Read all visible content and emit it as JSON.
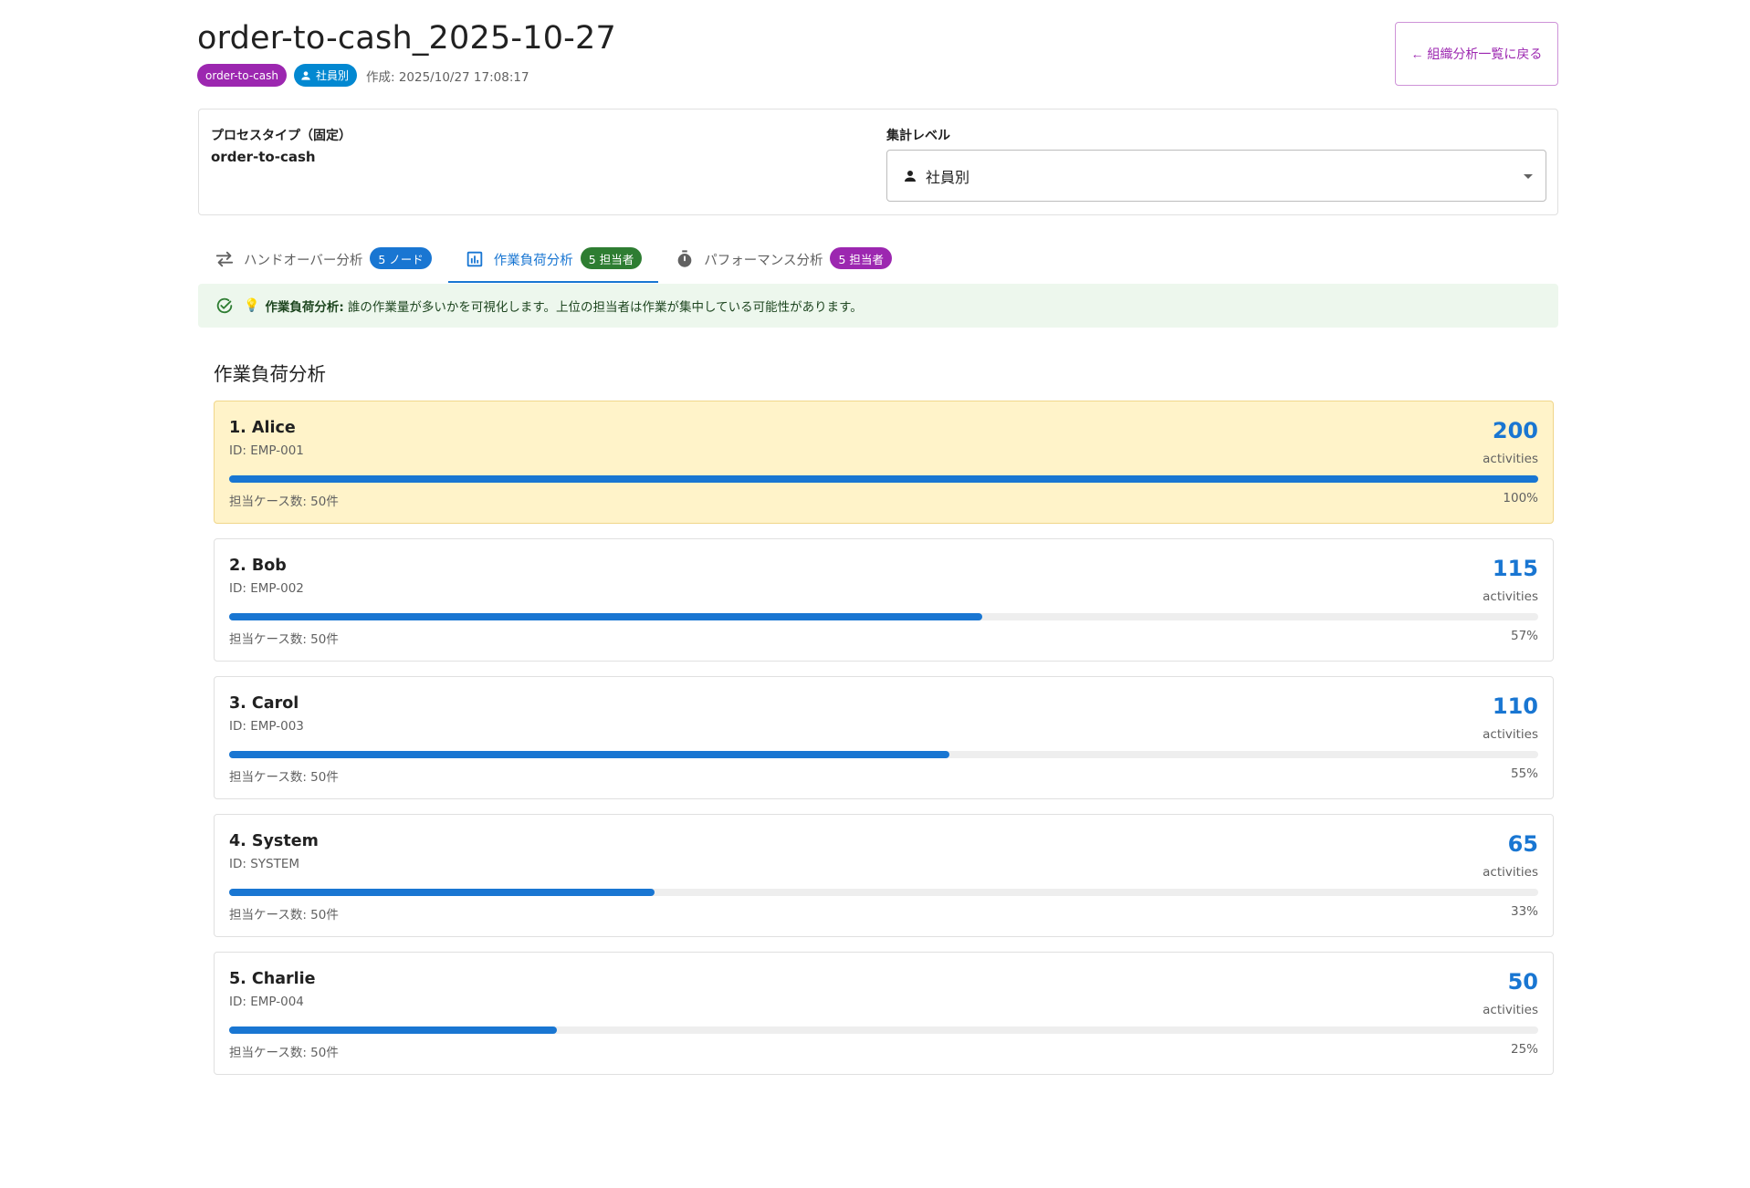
{
  "header": {
    "title": "order-to-cash_2025-10-27",
    "process_chip": "order-to-cash",
    "level_chip": "社員別",
    "created": "作成: 2025/10/27 17:08:17",
    "back_button": "← 組織分析一覧に戻る"
  },
  "config": {
    "process_label": "プロセスタイプ（固定）",
    "process_value": "order-to-cash",
    "level_label": "集計レベル",
    "level_value": "社員別"
  },
  "tabs": [
    {
      "label": "ハンドオーバー分析",
      "badge": "5 ノード",
      "icon": "swap-icon",
      "active": false
    },
    {
      "label": "作業負荷分析",
      "badge": "5 担当者",
      "icon": "bar-chart-icon",
      "active": true
    },
    {
      "label": "パフォーマンス分析",
      "badge": "5 担当者",
      "icon": "timer-icon",
      "active": false
    }
  ],
  "alert": {
    "bulb": "💡",
    "title": "作業負荷分析:",
    "text": "誰の作業量が多いかを可視化します。上位の担当者は作業が集中している可能性があります。"
  },
  "section_title": "作業負荷分析",
  "workload": [
    {
      "name": "1. Alice",
      "id": "ID: EMP-001",
      "count": "200",
      "unit": "activities",
      "cases": "担当ケース数: 50件",
      "pct": "100%",
      "ratio": 1.0,
      "highlight": true
    },
    {
      "name": "2. Bob",
      "id": "ID: EMP-002",
      "count": "115",
      "unit": "activities",
      "cases": "担当ケース数: 50件",
      "pct": "57%",
      "ratio": 0.575,
      "highlight": false
    },
    {
      "name": "3. Carol",
      "id": "ID: EMP-003",
      "count": "110",
      "unit": "activities",
      "cases": "担当ケース数: 50件",
      "pct": "55%",
      "ratio": 0.55,
      "highlight": false
    },
    {
      "name": "4. System",
      "id": "ID: SYSTEM",
      "count": "65",
      "unit": "activities",
      "cases": "担当ケース数: 50件",
      "pct": "33%",
      "ratio": 0.325,
      "highlight": false
    },
    {
      "name": "5. Charlie",
      "id": "ID: EMP-004",
      "count": "50",
      "unit": "activities",
      "cases": "担当ケース数: 50件",
      "pct": "25%",
      "ratio": 0.25,
      "highlight": false
    }
  ],
  "colors": {
    "primary": "#1976d2",
    "purple": "#9c27b0",
    "green": "#2e7d32",
    "highlight_bg": "#fff3c9"
  }
}
